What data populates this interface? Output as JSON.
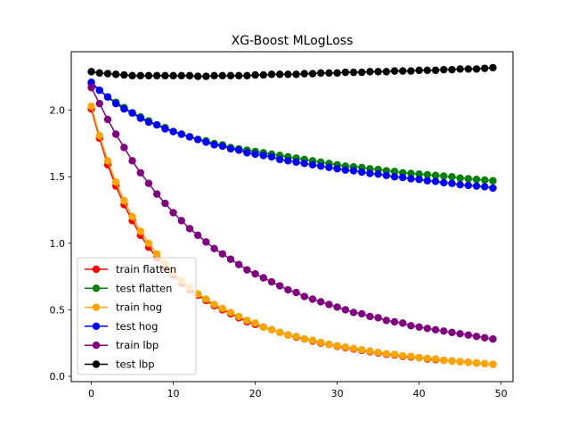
{
  "chart_data": {
    "type": "line",
    "title": "XG-Boost MLogLoss",
    "xlabel": "",
    "ylabel": "",
    "xlim": [
      -2.45,
      51.45
    ],
    "ylim": [
      -0.04,
      2.44
    ],
    "xticks": [
      0,
      10,
      20,
      30,
      40,
      50
    ],
    "yticks": [
      0.0,
      0.5,
      1.0,
      1.5,
      2.0
    ],
    "ytick_labels": [
      "0.0",
      "0.5",
      "1.0",
      "1.5",
      "2.0"
    ],
    "grid": false,
    "legend_position": "lower-left",
    "x": [
      0,
      1,
      2,
      3,
      4,
      5,
      6,
      7,
      8,
      9,
      10,
      11,
      12,
      13,
      14,
      15,
      16,
      17,
      18,
      19,
      20,
      21,
      22,
      23,
      24,
      25,
      26,
      27,
      28,
      29,
      30,
      31,
      32,
      33,
      34,
      35,
      36,
      37,
      38,
      39,
      40,
      41,
      42,
      43,
      44,
      45,
      46,
      47,
      48,
      49
    ],
    "series": [
      {
        "name": "train flatten",
        "color": "#ff0000",
        "values": [
          2.01,
          1.79,
          1.59,
          1.43,
          1.29,
          1.17,
          1.06,
          0.97,
          0.89,
          0.82,
          0.76,
          0.7,
          0.65,
          0.61,
          0.57,
          0.53,
          0.5,
          0.47,
          0.44,
          0.41,
          0.39,
          0.37,
          0.35,
          0.33,
          0.31,
          0.295,
          0.28,
          0.265,
          0.25,
          0.24,
          0.225,
          0.215,
          0.205,
          0.195,
          0.185,
          0.175,
          0.165,
          0.16,
          0.15,
          0.145,
          0.14,
          0.13,
          0.125,
          0.12,
          0.115,
          0.11,
          0.105,
          0.1,
          0.095,
          0.09
        ]
      },
      {
        "name": "test flatten",
        "color": "#008000",
        "values": [
          2.2,
          2.15,
          2.1,
          2.06,
          2.02,
          1.98,
          1.95,
          1.92,
          1.89,
          1.87,
          1.84,
          1.82,
          1.8,
          1.78,
          1.77,
          1.75,
          1.74,
          1.72,
          1.71,
          1.7,
          1.69,
          1.68,
          1.67,
          1.66,
          1.65,
          1.64,
          1.63,
          1.62,
          1.61,
          1.6,
          1.59,
          1.58,
          1.575,
          1.57,
          1.56,
          1.555,
          1.545,
          1.54,
          1.53,
          1.525,
          1.52,
          1.515,
          1.51,
          1.505,
          1.5,
          1.49,
          1.485,
          1.48,
          1.475,
          1.47
        ]
      },
      {
        "name": "train hog",
        "color": "#ffa500",
        "values": [
          2.03,
          1.81,
          1.62,
          1.46,
          1.32,
          1.2,
          1.09,
          1.0,
          0.92,
          0.85,
          0.78,
          0.72,
          0.67,
          0.62,
          0.58,
          0.54,
          0.51,
          0.48,
          0.45,
          0.42,
          0.4,
          0.37,
          0.35,
          0.33,
          0.31,
          0.3,
          0.28,
          0.27,
          0.255,
          0.24,
          0.23,
          0.22,
          0.21,
          0.2,
          0.19,
          0.18,
          0.17,
          0.165,
          0.155,
          0.15,
          0.14,
          0.135,
          0.13,
          0.12,
          0.115,
          0.11,
          0.105,
          0.1,
          0.095,
          0.09
        ]
      },
      {
        "name": "test hog",
        "color": "#0000ff",
        "values": [
          2.21,
          2.15,
          2.1,
          2.05,
          2.01,
          1.98,
          1.94,
          1.91,
          1.89,
          1.86,
          1.84,
          1.82,
          1.8,
          1.78,
          1.76,
          1.74,
          1.73,
          1.71,
          1.7,
          1.68,
          1.67,
          1.66,
          1.65,
          1.63,
          1.62,
          1.61,
          1.6,
          1.59,
          1.58,
          1.57,
          1.56,
          1.55,
          1.545,
          1.535,
          1.525,
          1.52,
          1.51,
          1.5,
          1.495,
          1.485,
          1.48,
          1.47,
          1.465,
          1.455,
          1.45,
          1.44,
          1.435,
          1.43,
          1.425,
          1.415
        ]
      },
      {
        "name": "train lbp",
        "color": "#800080",
        "values": [
          2.17,
          2.05,
          1.93,
          1.82,
          1.72,
          1.62,
          1.53,
          1.45,
          1.37,
          1.3,
          1.23,
          1.17,
          1.11,
          1.06,
          1.01,
          0.96,
          0.92,
          0.88,
          0.84,
          0.8,
          0.77,
          0.74,
          0.71,
          0.68,
          0.65,
          0.63,
          0.6,
          0.58,
          0.56,
          0.54,
          0.52,
          0.5,
          0.48,
          0.47,
          0.45,
          0.44,
          0.42,
          0.41,
          0.4,
          0.38,
          0.37,
          0.36,
          0.35,
          0.34,
          0.33,
          0.32,
          0.31,
          0.3,
          0.29,
          0.28
        ]
      },
      {
        "name": "test lbp",
        "color": "#000000",
        "values": [
          2.29,
          2.28,
          2.275,
          2.27,
          2.265,
          2.26,
          2.26,
          2.26,
          2.26,
          2.26,
          2.26,
          2.26,
          2.26,
          2.255,
          2.255,
          2.26,
          2.26,
          2.26,
          2.26,
          2.26,
          2.265,
          2.265,
          2.27,
          2.27,
          2.27,
          2.27,
          2.275,
          2.275,
          2.28,
          2.28,
          2.28,
          2.285,
          2.285,
          2.285,
          2.29,
          2.29,
          2.29,
          2.295,
          2.295,
          2.295,
          2.3,
          2.3,
          2.3,
          2.305,
          2.305,
          2.31,
          2.31,
          2.31,
          2.315,
          2.32
        ]
      }
    ]
  }
}
